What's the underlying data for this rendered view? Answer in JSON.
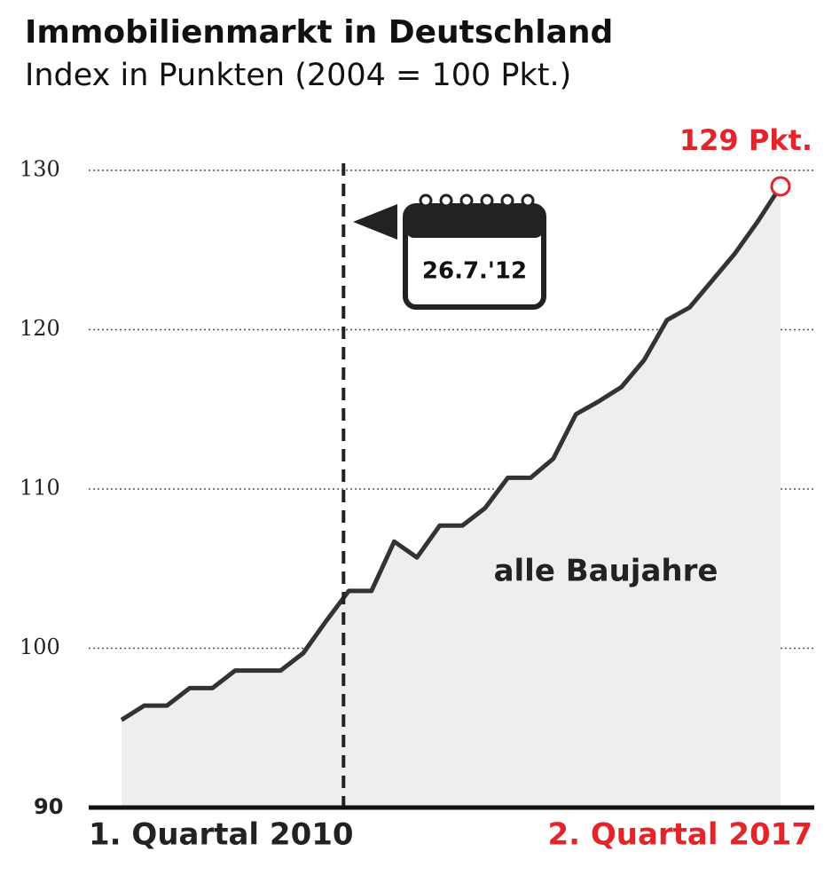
{
  "chart_data": {
    "type": "line",
    "title": "Immobilienmarkt in Deutschland",
    "subtitle": "Index in Punkten (2004 = 100 Pkt.)",
    "categories": [
      "1. Quartal 2010",
      null,
      null,
      null,
      null,
      null,
      null,
      null,
      null,
      null,
      null,
      null,
      null,
      null,
      null,
      null,
      null,
      null,
      null,
      null,
      null,
      null,
      null,
      null,
      null,
      null,
      null,
      null,
      null,
      "2. Quartal 2017"
    ],
    "series": [
      {
        "name": "alle Baujahre",
        "color": "#333333",
        "values": [
          95.5,
          96.4,
          96.4,
          97.5,
          97.5,
          98.6,
          98.6,
          98.6,
          99.7,
          101.7,
          103.6,
          103.6,
          106.7,
          105.7,
          107.7,
          107.7,
          108.8,
          110.7,
          110.7,
          111.9,
          114.7,
          115.5,
          116.4,
          118.1,
          120.6,
          121.4,
          123.1,
          124.8,
          126.8,
          129
        ],
        "value_labels": [
          null,
          null,
          null,
          null,
          null,
          null,
          null,
          null,
          null,
          null,
          null,
          null,
          null,
          null,
          null,
          null,
          null,
          null,
          null,
          null,
          null,
          null,
          null,
          null,
          null,
          null,
          null,
          null,
          null,
          "129 Pkt."
        ]
      }
    ],
    "highlight_color": "#e3242b",
    "event": {
      "label": "26.7.'12"
    },
    "ylim": [
      90,
      130
    ],
    "yticks": [
      90,
      100,
      110,
      120,
      130
    ],
    "grid": true
  }
}
